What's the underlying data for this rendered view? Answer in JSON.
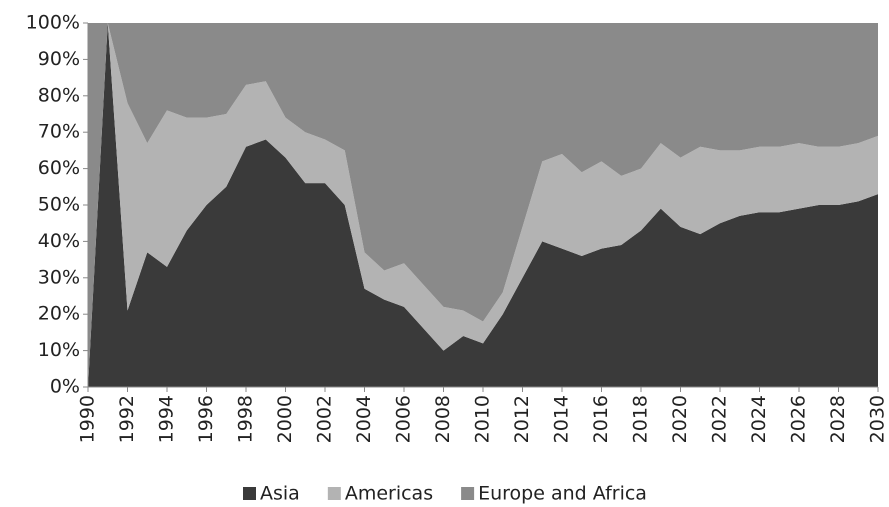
{
  "chart_data": {
    "type": "stacked_area",
    "x": [
      1990,
      1991,
      1992,
      1993,
      1994,
      1995,
      1996,
      1997,
      1998,
      1999,
      2000,
      2001,
      2002,
      2003,
      2004,
      2005,
      2006,
      2007,
      2008,
      2009,
      2010,
      2011,
      2012,
      2013,
      2014,
      2015,
      2016,
      2017,
      2018,
      2019,
      2020,
      2021,
      2022,
      2023,
      2024,
      2025,
      2026,
      2027,
      2028,
      2029,
      2030
    ],
    "series": [
      {
        "name": "Asia",
        "color": "#3a3a3a",
        "values": [
          0,
          100,
          21,
          37,
          33,
          43,
          50,
          55,
          66,
          68,
          63,
          56,
          56,
          50,
          27,
          24,
          22,
          16,
          10,
          14,
          12,
          20,
          30,
          40,
          38,
          36,
          38,
          39,
          43,
          49,
          44,
          42,
          45,
          47,
          48,
          48,
          49,
          50,
          50,
          51,
          53
        ]
      },
      {
        "name": "Americas",
        "color": "#b3b3b3",
        "values": [
          0,
          0,
          57,
          30,
          43,
          31,
          24,
          20,
          17,
          16,
          11,
          14,
          12,
          15,
          10,
          8,
          12,
          12,
          12,
          7,
          6,
          6,
          14,
          22,
          26,
          23,
          24,
          19,
          17,
          18,
          19,
          24,
          20,
          18,
          18,
          18,
          18,
          16,
          16,
          16,
          16
        ]
      },
      {
        "name": "Europe and Africa",
        "color": "#8a8a8a",
        "values": [
          100,
          0,
          22,
          33,
          24,
          26,
          26,
          25,
          17,
          16,
          26,
          30,
          32,
          35,
          63,
          68,
          66,
          72,
          78,
          79,
          82,
          74,
          56,
          38,
          36,
          41,
          38,
          42,
          40,
          33,
          37,
          34,
          35,
          35,
          34,
          34,
          33,
          34,
          34,
          33,
          31
        ]
      }
    ],
    "xlim": [
      1990,
      2030
    ],
    "xticks": [
      1990,
      1992,
      1994,
      1996,
      1998,
      2000,
      2002,
      2004,
      2006,
      2008,
      2010,
      2012,
      2014,
      2016,
      2018,
      2020,
      2022,
      2024,
      2026,
      2028,
      2030
    ],
    "ylim": [
      0,
      100
    ],
    "yticks": [
      {
        "value": 0,
        "label": "0%"
      },
      {
        "value": 10,
        "label": "10%"
      },
      {
        "value": 20,
        "label": "20%"
      },
      {
        "value": 30,
        "label": "30%"
      },
      {
        "value": 40,
        "label": "40%"
      },
      {
        "value": 50,
        "label": "50%"
      },
      {
        "value": 60,
        "label": "60%"
      },
      {
        "value": 70,
        "label": "70%"
      },
      {
        "value": 80,
        "label": "80%"
      },
      {
        "value": 90,
        "label": "90%"
      },
      {
        "value": 100,
        "label": "100%"
      }
    ],
    "legend": "bottom"
  }
}
